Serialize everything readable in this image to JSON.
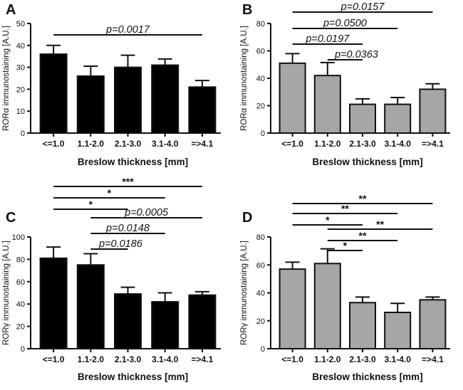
{
  "chart_data": [
    {
      "panel": "A",
      "type": "bar",
      "categories": [
        "<=1.0",
        "1.1-2.0",
        "2.1-3.0",
        "3.1-4.0",
        "=>4.1"
      ],
      "values": [
        36,
        26,
        30,
        31,
        21
      ],
      "errors": [
        4,
        4.5,
        5.5,
        2.8,
        3
      ],
      "bar_color": "#000000",
      "xlabel": "Breslow thickness [mm]",
      "ylabel": "RORα immunostaining [A.U.]",
      "ylim": [
        0,
        50
      ],
      "yticks": [
        0,
        10,
        20,
        30,
        40,
        50
      ],
      "annotations": [
        {
          "from": "<=1.0",
          "to": "=>4.1",
          "text": "p=0.0017"
        }
      ]
    },
    {
      "panel": "B",
      "type": "bar",
      "categories": [
        "<=1.0",
        "1.1-2.0",
        "2.1-3.0",
        "3.1-4.0",
        "=>4.1"
      ],
      "values": [
        51,
        42,
        21,
        21,
        32
      ],
      "errors": [
        7,
        9.5,
        4,
        5,
        4
      ],
      "bar_color": "#a6a6a6",
      "xlabel": "Breslow thickness [mm]",
      "ylabel": "RORα immunostaining [A.U.]",
      "ylim": [
        0,
        80
      ],
      "yticks": [
        0,
        20,
        40,
        60,
        80
      ],
      "annotations": [
        {
          "from": "<=1.0",
          "to": "=>4.1",
          "text": "p=0.0157"
        },
        {
          "from": "<=1.0",
          "to": "3.1-4.0",
          "text": "p=0.0500"
        },
        {
          "from": "<=1.0",
          "to": "2.1-3.0",
          "text": "p=0.0197"
        },
        {
          "from": "1.1-2.0",
          "to": "2.1-3.0",
          "text": "p=0.0363"
        }
      ]
    },
    {
      "panel": "C",
      "type": "bar",
      "categories": [
        "<=1.0",
        "1.1-2.0",
        "2.1-3.0",
        "3.1-4.0",
        "=>4.1"
      ],
      "values": [
        81,
        75,
        49,
        42,
        48
      ],
      "errors": [
        10,
        10,
        6,
        8,
        3
      ],
      "bar_color": "#000000",
      "xlabel": "Breslow thickness [mm]",
      "ylabel": "RORγ immunostaining [A.U.]",
      "ylim": [
        0,
        100
      ],
      "yticks": [
        0,
        20,
        40,
        60,
        80,
        100
      ],
      "annotations": [
        {
          "from": "<=1.0",
          "to": "=>4.1",
          "text": "***"
        },
        {
          "from": "<=1.0",
          "to": "3.1-4.0",
          "text": "*"
        },
        {
          "from": "<=1.0",
          "to": "2.1-3.0",
          "text": "*"
        },
        {
          "from": "1.1-2.0",
          "to": "=>4.1",
          "text": "p=0.0005"
        },
        {
          "from": "1.1-2.0",
          "to": "3.1-4.0",
          "text": "p=0.0148"
        },
        {
          "from": "1.1-2.0",
          "to": "2.1-3.0",
          "text": "p=0.0186"
        }
      ]
    },
    {
      "panel": "D",
      "type": "bar",
      "categories": [
        "<=1.0",
        "1.1-2.0",
        "2.1-3.0",
        "3.1-4.0",
        "=>4.1"
      ],
      "values": [
        57,
        61,
        33,
        26,
        35
      ],
      "errors": [
        5,
        10.5,
        4,
        6.5,
        2
      ],
      "bar_color": "#a6a6a6",
      "xlabel": "Breslow thickness [mm]",
      "ylabel": "RORγ immunostaining [A.U.]",
      "ylim": [
        0,
        80
      ],
      "yticks": [
        0,
        20,
        40,
        60,
        80
      ],
      "annotations": [
        {
          "from": "<=1.0",
          "to": "=>4.1",
          "text": "**"
        },
        {
          "from": "<=1.0",
          "to": "3.1-4.0",
          "text": "**"
        },
        {
          "from": "<=1.0",
          "to": "2.1-3.0",
          "text": "*"
        },
        {
          "from": "1.1-2.0",
          "to": "=>4.1",
          "text": "**"
        },
        {
          "from": "1.1-2.0",
          "to": "3.1-4.0",
          "text": "**"
        },
        {
          "from": "1.1-2.0",
          "to": "2.1-3.0",
          "text": "*"
        }
      ]
    }
  ]
}
